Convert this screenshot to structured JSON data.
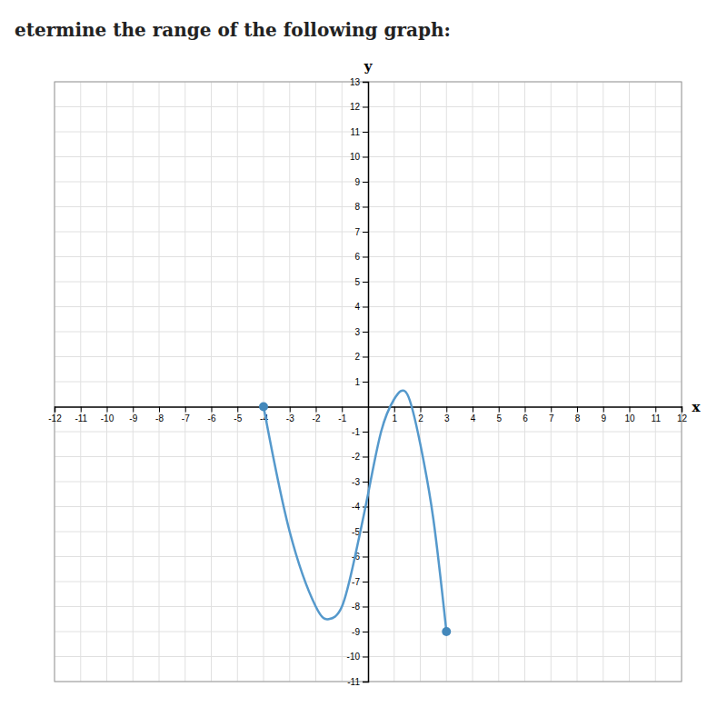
{
  "chart_data": {
    "type": "line",
    "title": "etermine the range of the following graph:",
    "x_label": "x",
    "y_label": "y",
    "x": [
      -4.0,
      -3.0,
      -2.0,
      -1.5,
      -1.0,
      -0.5,
      0.0,
      0.5,
      1.0,
      1.5,
      2.0,
      2.5,
      3.0
    ],
    "series": [
      {
        "type": "line",
        "color": "#5599cc",
        "values": [
          0.0,
          -5.0,
          -8.0,
          -8.5,
          -8.0,
          -6.0,
          -3.5,
          -1.0,
          0.3,
          0.5,
          -1.5,
          -4.5,
          -9.0
        ]
      },
      {
        "type": "scatter",
        "color": "#4488bb",
        "values": [
          0,
          null,
          null,
          null,
          null,
          null,
          null,
          null,
          null,
          null,
          null,
          null,
          -9
        ]
      }
    ],
    "xlim": [
      -12,
      12
    ],
    "xticks": [
      -12,
      -11,
      -10,
      -9,
      -8,
      -7,
      -6,
      -5,
      -4,
      -3,
      -2,
      -1,
      1,
      2,
      3,
      4,
      5,
      6,
      7,
      8,
      9,
      10,
      11,
      12
    ],
    "ylim": [
      -11,
      13
    ],
    "yticks": [
      -11,
      -10,
      -9,
      -8,
      -7,
      -6,
      -5,
      -4,
      -3,
      -2,
      -1,
      1,
      2,
      3,
      4,
      5,
      6,
      7,
      8,
      9,
      10,
      11,
      12,
      13
    ],
    "grid": true
  }
}
